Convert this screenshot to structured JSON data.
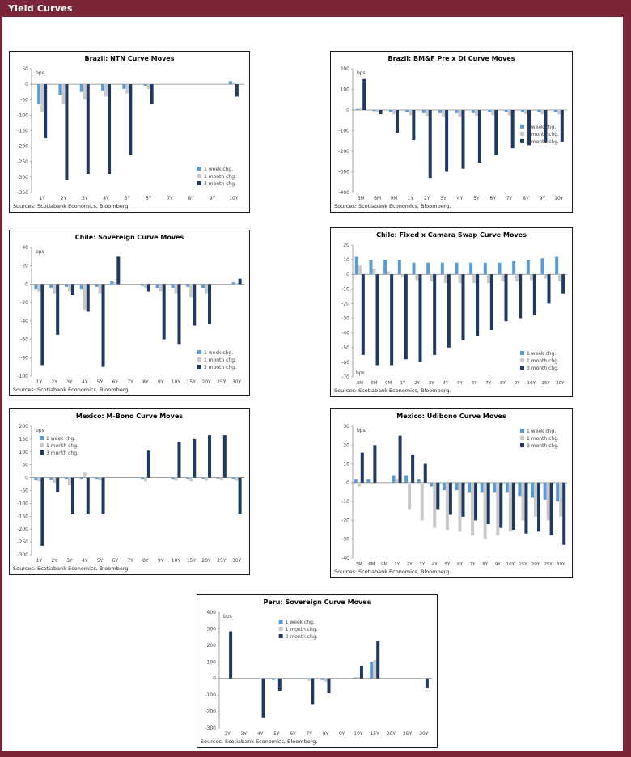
{
  "page": {
    "title": "Yield Curves",
    "header_bg": "#7a2638"
  },
  "labels": {
    "sources": "Sources: Scotiabank Economics, Bloomberg.",
    "bps": "bps"
  },
  "legend": [
    "1 week chg.",
    "1 month chg.",
    "3 month chg."
  ],
  "colors": {
    "week_chg": "#5b9bd5",
    "month_chg": "#c9c9c9",
    "three_month_chg": "#1f3864"
  },
  "chart_data": [
    {
      "id": "brazil-ntn",
      "type": "bar",
      "title": "Brazil: NTN Curve Moves",
      "ylabel": "bps",
      "bps_pos": "top",
      "ylim": [
        -350,
        50
      ],
      "ytick": 50,
      "legend_pos": "bottom-right",
      "grid": false,
      "categories": [
        "1Y",
        "2Y",
        "3Y",
        "4Y",
        "5Y",
        "6Y",
        "7Y",
        "8Y",
        "9Y",
        "10Y"
      ],
      "series": [
        {
          "name": "1 week chg.",
          "color": "#5b9bd5",
          "values": [
            -65,
            -35,
            -25,
            -20,
            -15,
            -5,
            0,
            0,
            0,
            10
          ]
        },
        {
          "name": "1 month chg.",
          "color": "#c9c9c9",
          "values": [
            -90,
            -65,
            -50,
            -40,
            -30,
            -15,
            0,
            0,
            0,
            5
          ]
        },
        {
          "name": "3 month chg.",
          "color": "#1f3864",
          "values": [
            -175,
            -310,
            -290,
            -290,
            -230,
            -65,
            0,
            0,
            0,
            -40
          ]
        }
      ]
    },
    {
      "id": "brazil-bmf-pre-di",
      "type": "bar",
      "title": "Brazil: BM&F Pre x DI Curve Moves",
      "ylabel": "bps",
      "bps_pos": "top",
      "ylim": [
        -400,
        200
      ],
      "ytick": 100,
      "legend_pos": "mid-right",
      "grid": false,
      "categories": [
        "3M",
        "6M",
        "9M",
        "1Y",
        "2Y",
        "3Y",
        "4Y",
        "5Y",
        "6Y",
        "7Y",
        "8Y",
        "9Y",
        "10Y"
      ],
      "series": [
        {
          "name": "1 week chg.",
          "color": "#5b9bd5",
          "values": [
            5,
            -5,
            -10,
            -10,
            -15,
            -15,
            -15,
            -15,
            -10,
            -10,
            -10,
            -10,
            -10
          ]
        },
        {
          "name": "1 month chg.",
          "color": "#c9c9c9",
          "values": [
            10,
            -10,
            -20,
            -25,
            -30,
            -35,
            -35,
            -30,
            -25,
            -25,
            -20,
            -20,
            -20
          ]
        },
        {
          "name": "3 month chg.",
          "color": "#1f3864",
          "values": [
            150,
            -20,
            -110,
            -145,
            -330,
            -300,
            -285,
            -255,
            -220,
            -185,
            -170,
            -160,
            -155
          ]
        }
      ]
    },
    {
      "id": "chile-sovereign",
      "type": "bar",
      "title": "Chile: Sovereign Curve Moves",
      "ylabel": "bps",
      "bps_pos": "top",
      "ylim": [
        -100,
        40
      ],
      "ytick": 20,
      "legend_pos": "bottom-right",
      "grid": false,
      "categories": [
        "1Y",
        "2Y",
        "3Y",
        "4Y",
        "5Y",
        "6Y",
        "7Y",
        "8Y",
        "9Y",
        "10Y",
        "15Y",
        "20Y",
        "25Y",
        "30Y"
      ],
      "series": [
        {
          "name": "1 week chg.",
          "color": "#5b9bd5",
          "values": [
            -5,
            -4,
            -3,
            -5,
            -3,
            3,
            0,
            -2,
            -4,
            -4,
            -3,
            -4,
            0,
            2
          ]
        },
        {
          "name": "1 month chg.",
          "color": "#c9c9c9",
          "values": [
            -8,
            -10,
            -8,
            -28,
            -10,
            2,
            0,
            -4,
            -8,
            -10,
            -14,
            -10,
            0,
            1
          ]
        },
        {
          "name": "3 month chg.",
          "color": "#1f3864",
          "values": [
            -88,
            -55,
            -12,
            -30,
            -90,
            30,
            0,
            -8,
            -60,
            -65,
            -45,
            -43,
            0,
            6
          ]
        }
      ]
    },
    {
      "id": "chile-fixed-camara",
      "type": "bar",
      "title": "Chile: Fixed x Camara Swap Curve Moves",
      "ylabel": "bps",
      "bps_pos": "bottom",
      "ylim": [
        -70,
        20
      ],
      "ytick": 10,
      "legend_pos": "bottom-right",
      "grid": false,
      "categories": [
        "3M",
        "6M",
        "9M",
        "1Y",
        "2Y",
        "3Y",
        "4Y",
        "5Y",
        "6Y",
        "7Y",
        "8Y",
        "9Y",
        "10Y",
        "15Y",
        "20Y"
      ],
      "series": [
        {
          "name": "1 week chg.",
          "color": "#5b9bd5",
          "values": [
            12,
            10,
            10,
            10,
            8,
            8,
            8,
            8,
            8,
            8,
            8,
            9,
            10,
            11,
            12
          ]
        },
        {
          "name": "1 month chg.",
          "color": "#c9c9c9",
          "values": [
            6,
            4,
            2,
            -2,
            -4,
            -5,
            -6,
            -6,
            -6,
            -6,
            -5,
            -5,
            -4,
            -3,
            -5
          ]
        },
        {
          "name": "3 month chg.",
          "color": "#1f3864",
          "values": [
            -55,
            -62,
            -62,
            -58,
            -60,
            -55,
            -50,
            -45,
            -42,
            -38,
            -32,
            -30,
            -28,
            -20,
            -13
          ]
        }
      ]
    },
    {
      "id": "mexico-mbono",
      "type": "bar",
      "title": "Mexico: M-Bono Curve Moves",
      "ylabel": "bps",
      "bps_pos": "top",
      "ylim": [
        -300,
        200
      ],
      "ytick": 50,
      "legend_pos": "top-left",
      "grid": false,
      "categories": [
        "1Y",
        "2Y",
        "3Y",
        "4Y",
        "5Y",
        "6Y",
        "7Y",
        "8Y",
        "9Y",
        "10Y",
        "15Y",
        "20Y",
        "25Y",
        "30Y"
      ],
      "series": [
        {
          "name": "1 week chg.",
          "color": "#5b9bd5",
          "values": [
            -10,
            -8,
            -5,
            -5,
            -5,
            0,
            0,
            -5,
            0,
            -5,
            -5,
            -4,
            -4,
            -5
          ]
        },
        {
          "name": "1 month chg.",
          "color": "#c9c9c9",
          "values": [
            -15,
            -20,
            -30,
            20,
            -10,
            0,
            0,
            -15,
            0,
            -12,
            -15,
            -12,
            -10,
            -12
          ]
        },
        {
          "name": "3 month chg.",
          "color": "#1f3864",
          "values": [
            -265,
            -55,
            -140,
            -140,
            -140,
            0,
            0,
            105,
            0,
            140,
            150,
            165,
            165,
            -140
          ]
        }
      ]
    },
    {
      "id": "mexico-udibono",
      "type": "bar",
      "title": "Mexico: Udibono Curve Moves",
      "ylabel": "bps",
      "bps_pos": "top",
      "ylim": [
        -40,
        30
      ],
      "ytick": 10,
      "legend_pos": "top-right",
      "grid": false,
      "categories": [
        "3M",
        "6M",
        "9M",
        "1Y",
        "2Y",
        "3Y",
        "4Y",
        "5Y",
        "6Y",
        "7Y",
        "8Y",
        "9Y",
        "10Y",
        "15Y",
        "20Y",
        "25Y",
        "30Y"
      ],
      "series": [
        {
          "name": "1 week chg.",
          "color": "#5b9bd5",
          "values": [
            2,
            2,
            0,
            4,
            4,
            2,
            -2,
            -4,
            -4,
            -5,
            -5,
            -5,
            -5,
            -7,
            -8,
            -9,
            -10
          ]
        },
        {
          "name": "1 month chg.",
          "color": "#c9c9c9",
          "values": [
            -2,
            -1,
            0,
            2,
            -14,
            -20,
            -24,
            -25,
            -26,
            -28,
            -30,
            -28,
            -26,
            -20,
            -18,
            -20,
            -18
          ]
        },
        {
          "name": "3 month chg.",
          "color": "#1f3864",
          "values": [
            16,
            20,
            0,
            25,
            15,
            10,
            -14,
            -17,
            -18,
            -20,
            -22,
            -24,
            -25,
            -27,
            -26,
            -28,
            -33
          ]
        }
      ]
    },
    {
      "id": "peru-sovereign",
      "type": "bar",
      "title": "Peru: Sovereign Curve Moves",
      "ylabel": "bps",
      "bps_pos": "top",
      "ylim": [
        -300,
        400
      ],
      "ytick": 100,
      "legend_pos": "top-center",
      "grid": false,
      "categories": [
        "2Y",
        "3Y",
        "4Y",
        "5Y",
        "6Y",
        "7Y",
        "8Y",
        "9Y",
        "10Y",
        "15Y",
        "20Y",
        "25Y",
        "30Y"
      ],
      "series": [
        {
          "name": "1 week chg.",
          "color": "#5b9bd5",
          "values": [
            0,
            0,
            0,
            -10,
            0,
            -5,
            -10,
            0,
            5,
            100,
            0,
            0,
            0
          ]
        },
        {
          "name": "1 month chg.",
          "color": "#c9c9c9",
          "values": [
            0,
            0,
            -5,
            -5,
            0,
            -15,
            -20,
            0,
            8,
            110,
            0,
            0,
            -3
          ]
        },
        {
          "name": "3 month chg.",
          "color": "#1f3864",
          "values": [
            285,
            0,
            -240,
            -75,
            0,
            -160,
            -90,
            0,
            75,
            225,
            0,
            0,
            -60
          ]
        }
      ]
    }
  ]
}
